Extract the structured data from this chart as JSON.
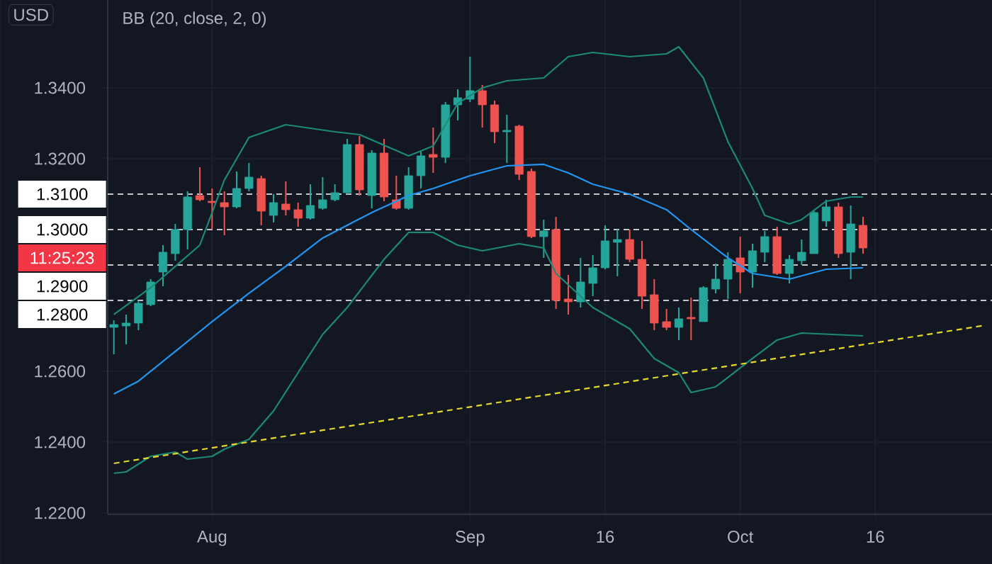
{
  "chart_data": {
    "type": "candlestick",
    "title": "BB (20, close, 2, 0)",
    "ylabel": "USD",
    "categories": [
      null,
      null,
      null,
      null,
      null,
      null,
      null,
      null,
      "Aug",
      null,
      null,
      null,
      null,
      null,
      null,
      null,
      null,
      null,
      null,
      null,
      null,
      null,
      null,
      null,
      null,
      null,
      null,
      null,
      null,
      "Sep",
      null,
      null,
      null,
      null,
      null,
      null,
      null,
      null,
      null,
      null,
      "16",
      null,
      null,
      null,
      null,
      null,
      null,
      null,
      null,
      null,
      null,
      "Oct",
      null,
      null,
      null,
      null,
      null,
      null,
      null,
      null,
      null,
      null,
      "16",
      null,
      null,
      null,
      null,
      null,
      null,
      null,
      null,
      null
    ],
    "ohlc": [
      [
        1.2724,
        1.2744,
        1.2648,
        1.2732
      ],
      [
        1.2728,
        1.276,
        1.2676,
        1.2736
      ],
      [
        1.2736,
        1.28,
        1.2716,
        1.2792
      ],
      [
        1.2788,
        1.286,
        1.2784,
        1.2852
      ],
      [
        1.288,
        1.2956,
        1.284,
        1.2936
      ],
      [
        1.2932,
        1.3016,
        1.2912,
        1.3
      ],
      [
        1.3,
        1.3108,
        1.2944,
        1.3092
      ],
      [
        1.3096,
        1.3176,
        1.308,
        1.3084
      ],
      [
        1.308,
        1.3116,
        1.3,
        1.3076
      ],
      [
        1.3076,
        1.3108,
        1.2984,
        1.3064
      ],
      [
        1.3064,
        1.3164,
        1.306,
        1.3116
      ],
      [
        1.3116,
        1.3188,
        1.3108,
        1.3148
      ],
      [
        1.3144,
        1.3152,
        1.3012,
        1.3052
      ],
      [
        1.304,
        1.31,
        1.302,
        1.3076
      ],
      [
        1.3072,
        1.3136,
        1.304,
        1.3056
      ],
      [
        1.3056,
        1.3076,
        1.3008,
        1.3032
      ],
      [
        1.3032,
        1.3128,
        1.3028,
        1.3068
      ],
      [
        1.306,
        1.3148,
        1.3056,
        1.3084
      ],
      [
        1.3084,
        1.3128,
        1.308,
        1.3104
      ],
      [
        1.3104,
        1.3256,
        1.31,
        1.324
      ],
      [
        1.324,
        1.3264,
        1.3096,
        1.3112
      ],
      [
        1.3096,
        1.3224,
        1.306,
        1.3216
      ],
      [
        1.3216,
        1.3256,
        1.308,
        1.3092
      ],
      [
        1.3084,
        1.3152,
        1.3056,
        1.306
      ],
      [
        1.306,
        1.3176,
        1.3056,
        1.3152
      ],
      [
        1.3152,
        1.322,
        1.3116,
        1.3208
      ],
      [
        1.3212,
        1.3288,
        1.316,
        1.3204
      ],
      [
        1.3204,
        1.336,
        1.3188,
        1.3352
      ],
      [
        1.3352,
        1.3396,
        1.3308,
        1.3372
      ],
      [
        1.3368,
        1.3488,
        1.336,
        1.3392
      ],
      [
        1.3392,
        1.3408,
        1.3288,
        1.3352
      ],
      [
        1.3352,
        1.3364,
        1.3244,
        1.3276
      ],
      [
        1.3276,
        1.3324,
        1.3188,
        1.328
      ],
      [
        1.3292,
        1.3296,
        1.314,
        1.3156
      ],
      [
        1.3164,
        1.3172,
        1.2976,
        1.298
      ],
      [
        1.298,
        1.3028,
        1.292,
        1.2996
      ],
      [
        1.3,
        1.3036,
        1.2776,
        1.28
      ],
      [
        1.2804,
        1.2872,
        1.276,
        1.2796
      ],
      [
        1.2796,
        1.292,
        1.278,
        1.2852
      ],
      [
        1.2848,
        1.2928,
        1.2812,
        1.2892
      ],
      [
        1.2892,
        1.3012,
        1.2888,
        1.2968
      ],
      [
        1.2964,
        1.3,
        1.2868,
        1.2972
      ],
      [
        1.2972,
        1.3,
        1.2908,
        1.2916
      ],
      [
        1.2916,
        1.2968,
        1.2776,
        1.2812
      ],
      [
        1.2816,
        1.286,
        1.2716,
        1.2736
      ],
      [
        1.274,
        1.2776,
        1.2716,
        1.2724
      ],
      [
        1.2724,
        1.278,
        1.2688,
        1.2748
      ],
      [
        1.2752,
        1.2808,
        1.2688,
        1.2748
      ],
      [
        1.274,
        1.284,
        1.274,
        1.2836
      ],
      [
        1.2832,
        1.2904,
        1.282,
        1.286
      ],
      [
        1.286,
        1.2936,
        1.2804,
        1.2916
      ],
      [
        1.292,
        1.298,
        1.282,
        1.288
      ],
      [
        1.288,
        1.296,
        1.2836,
        1.294
      ],
      [
        1.2936,
        1.2996,
        1.2908,
        1.298
      ],
      [
        1.298,
        1.3008,
        1.2872,
        1.2876
      ],
      [
        1.2876,
        1.2928,
        1.2848,
        1.2916
      ],
      [
        1.2912,
        1.2972,
        1.29,
        1.2936
      ],
      [
        1.2932,
        1.3052,
        1.2932,
        1.3048
      ],
      [
        1.3024,
        1.3084,
        1.3008,
        1.3064
      ],
      [
        1.3064,
        1.3076,
        1.292,
        1.2932
      ],
      [
        1.2936,
        1.3068,
        1.286,
        1.3016
      ],
      [
        1.3012,
        1.3036,
        1.2932,
        1.2948
      ],
      null,
      null,
      null,
      null,
      null,
      null,
      null,
      null,
      null,
      null
    ],
    "colors": [
      "#26a69a",
      "#26a69a",
      "#26a69a",
      "#26a69a",
      "#26a69a",
      "#26a69a",
      "#26a69a",
      "#ef5350",
      "#ef5350",
      "#ef5350",
      "#26a69a",
      "#26a69a",
      "#ef5350",
      "#26a69a",
      "#ef5350",
      "#ef5350",
      "#26a69a",
      "#26a69a",
      "#26a69a",
      "#26a69a",
      "#ef5350",
      "#26a69a",
      "#ef5350",
      "#ef5350",
      "#26a69a",
      "#26a69a",
      "#ef5350",
      "#26a69a",
      "#26a69a",
      "#26a69a",
      "#ef5350",
      "#ef5350",
      "#26a69a",
      "#ef5350",
      "#ef5350",
      "#26a69a",
      "#ef5350",
      "#ef5350",
      "#26a69a",
      "#26a69a",
      "#26a69a",
      "#26a69a",
      "#ef5350",
      "#ef5350",
      "#ef5350",
      "#ef5350",
      "#26a69a",
      "#ef5350",
      "#26a69a",
      "#26a69a",
      "#26a69a",
      "#ef5350",
      "#26a69a",
      "#26a69a",
      "#ef5350",
      "#26a69a",
      "#26a69a",
      "#26a69a",
      "#26a69a",
      "#ef5350",
      "#26a69a",
      "#ef5350",
      null,
      null,
      null,
      null,
      null,
      null,
      null,
      null,
      null,
      null
    ],
    "series": [
      {
        "type": "line",
        "color": "#2196f3",
        "values": [
          1.2536,
          null,
          1.2572,
          null,
          null,
          1.2656,
          null,
          null,
          1.274,
          null,
          null,
          1.282,
          null,
          null,
          1.2896,
          null,
          null,
          1.2976,
          null,
          null,
          null,
          1.3048,
          null,
          null,
          1.3096,
          null,
          1.3116,
          null,
          null,
          1.3152,
          null,
          null,
          1.318,
          null,
          null,
          1.3184,
          null,
          1.316,
          null,
          1.3128,
          null,
          null,
          1.31,
          null,
          null,
          1.3056,
          null,
          1.3,
          null,
          null,
          1.292,
          null,
          1.2876,
          null,
          null,
          1.286,
          null,
          null,
          1.2888,
          null,
          null,
          1.2892,
          null,
          null,
          null,
          null,
          null,
          null,
          null,
          null,
          null,
          null
        ]
      },
      {
        "type": "line",
        "color": "#1b8a78",
        "values": [
          1.276,
          null,
          null,
          1.2836,
          null,
          null,
          null,
          1.2956,
          null,
          1.314,
          null,
          1.326,
          null,
          null,
          1.3296,
          null,
          null,
          null,
          1.3276,
          null,
          1.3268,
          null,
          null,
          null,
          1.3208,
          null,
          1.3236,
          null,
          1.3356,
          null,
          1.34,
          null,
          1.342,
          null,
          null,
          1.3428,
          null,
          1.3488,
          null,
          1.35,
          null,
          null,
          1.3488,
          null,
          null,
          1.3496,
          1.3516,
          null,
          1.3428,
          null,
          1.3248,
          null,
          1.3116,
          1.304,
          null,
          1.3016,
          1.3028,
          null,
          1.308,
          null,
          1.3092,
          1.3092,
          null,
          null,
          null,
          null,
          null,
          null,
          null,
          null,
          null,
          null
        ]
      },
      {
        "type": "line",
        "color": "#1b8a78",
        "values": [
          1.2312,
          1.2316,
          null,
          1.236,
          null,
          1.2372,
          1.2352,
          null,
          1.236,
          1.238,
          null,
          1.2408,
          null,
          1.2488,
          null,
          1.2596,
          null,
          1.2704,
          null,
          1.278,
          null,
          null,
          1.2916,
          null,
          1.2992,
          null,
          1.2992,
          null,
          1.2956,
          null,
          1.294,
          null,
          null,
          1.296,
          null,
          1.2948,
          1.2876,
          null,
          null,
          1.278,
          null,
          null,
          1.272,
          null,
          1.2636,
          null,
          1.2596,
          1.254,
          null,
          1.2556,
          null,
          null,
          1.2636,
          null,
          1.2688,
          null,
          1.2708,
          null,
          null,
          null,
          null,
          1.27,
          null,
          null,
          null,
          null,
          null,
          null,
          null,
          null,
          null,
          null
        ]
      },
      {
        "type": "line",
        "color": "#e6d92b",
        "line_style": "dashed",
        "values": [
          1.234,
          null,
          null,
          null,
          null,
          null,
          null,
          null,
          null,
          null,
          null,
          null,
          null,
          null,
          null,
          null,
          null,
          null,
          null,
          null,
          null,
          null,
          null,
          null,
          null,
          null,
          null,
          null,
          null,
          null,
          null,
          null,
          null,
          null,
          null,
          null,
          null,
          null,
          null,
          null,
          null,
          null,
          null,
          null,
          null,
          null,
          null,
          null,
          null,
          null,
          null,
          null,
          null,
          null,
          null,
          null,
          null,
          null,
          null,
          null,
          null,
          null,
          null,
          null,
          null,
          null,
          null,
          null,
          null,
          null,
          null,
          1.273
        ]
      }
    ],
    "ylim": [
      1.2196,
      1.3648
    ],
    "yticks": [
      {
        "value": 1.22,
        "label": "1.2200"
      },
      {
        "value": 1.24,
        "label": "1.2400"
      },
      {
        "value": 1.26,
        "label": "1.2600"
      },
      {
        "value": 1.32,
        "label": "1.3200"
      },
      {
        "value": 1.34,
        "label": "1.3400"
      }
    ],
    "grid": true,
    "annotations": [
      "11:25:23"
    ],
    "ref_lines": [
      {
        "axis": "y",
        "value": 1.31,
        "label": "1.3100",
        "color": "#ffffff",
        "line_style": "dashed"
      },
      {
        "axis": "y",
        "value": 1.3,
        "label": "1.3000",
        "color": "#ffffff",
        "line_style": "dashed"
      },
      {
        "axis": "y",
        "value": 1.29,
        "label": "1.2900",
        "color": "#ffffff",
        "line_style": "dashed"
      },
      {
        "axis": "y",
        "value": 1.28,
        "label": "1.2800",
        "color": "#ffffff",
        "line_style": "dashed"
      }
    ]
  }
}
